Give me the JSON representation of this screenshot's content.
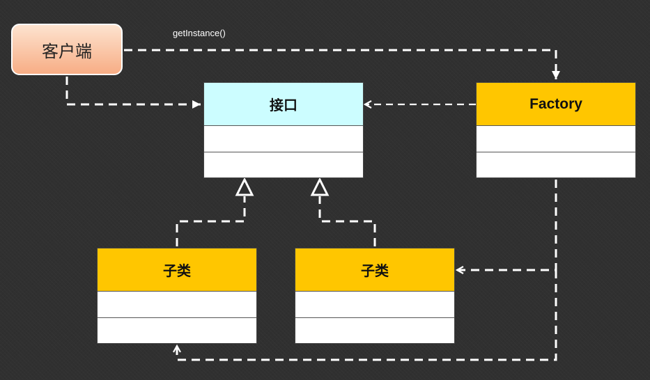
{
  "client": {
    "label": "客户端"
  },
  "interface": {
    "title": "接口"
  },
  "factory": {
    "title": "Factory"
  },
  "subclass_left": {
    "title": "子类"
  },
  "subclass_right": {
    "title": "子类"
  },
  "edges": {
    "get_instance_label": "getInstance()"
  },
  "colors": {
    "background": "#303030",
    "interface_header": "#ccfdff",
    "class_header": "#ffc600",
    "client_top": "#fde3cf",
    "client_bottom": "#f7ad85",
    "line": "#ffffff"
  }
}
